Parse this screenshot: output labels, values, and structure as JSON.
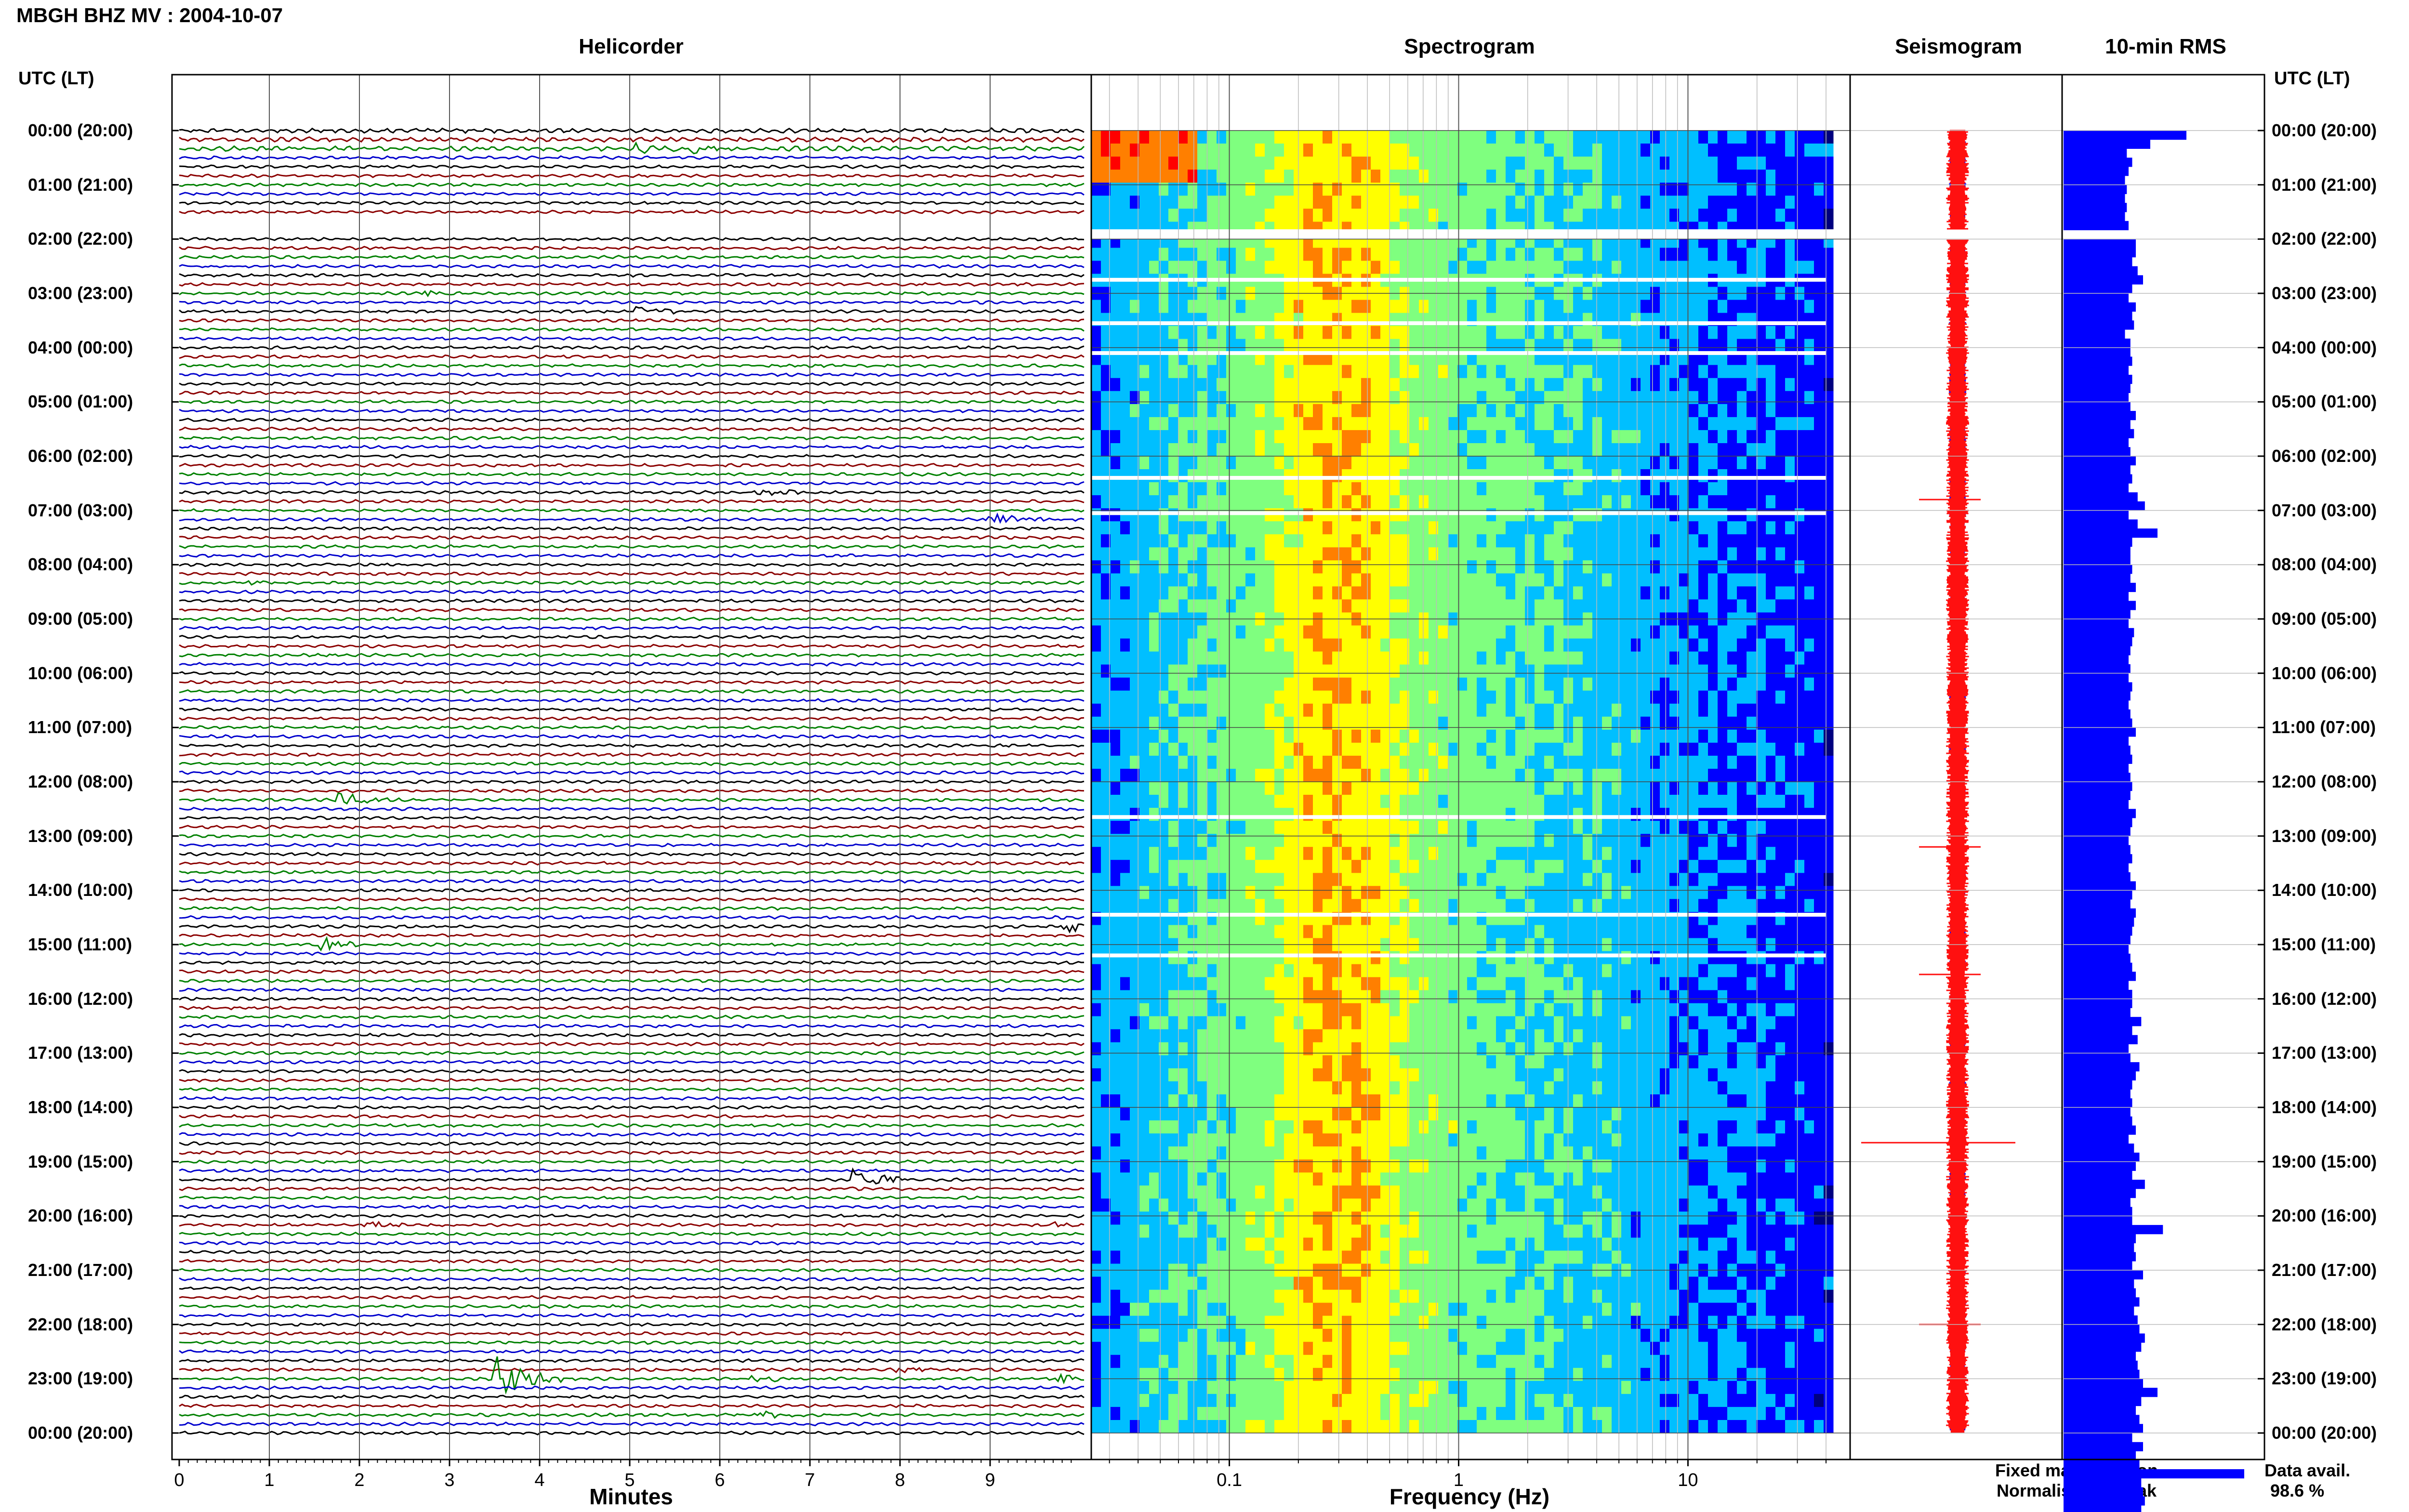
{
  "header": {
    "station_title": "MBGH BHZ MV : 2004-10-07",
    "time_axis_label_left": "UTC (LT)",
    "time_axis_label_right": "UTC (LT)"
  },
  "panels": {
    "helicorder": {
      "title": "Helicorder",
      "xlabel": "Minutes"
    },
    "spectrogram": {
      "title": "Spectrogram",
      "xlabel": "Frequency (Hz)"
    },
    "seismogram": {
      "title": "Seismogram"
    },
    "rms": {
      "title": "10-min RMS"
    }
  },
  "legend": {
    "fixed": "Fixed magnification",
    "normalised": "Normalised to peak",
    "fixed_color": "#1010ff",
    "normalised_color": "#ff1010"
  },
  "availability": {
    "label": "Data avail.",
    "value": "98.6 %"
  },
  "chart_data": [
    {
      "type": "line",
      "panel": "Helicorder",
      "title": "Helicorder",
      "xlabel": "Minutes",
      "ylabel": "UTC (LT)",
      "x_ticks": [
        "0",
        "1",
        "2",
        "3",
        "4",
        "5",
        "6",
        "7",
        "8",
        "9"
      ],
      "xlim": [
        0,
        10
      ],
      "time_labels": [
        "00:00 (20:00)",
        "01:00 (21:00)",
        "02:00 (22:00)",
        "03:00 (23:00)",
        "04:00 (00:00)",
        "05:00 (01:00)",
        "06:00 (02:00)",
        "07:00 (03:00)",
        "08:00 (04:00)",
        "09:00 (05:00)",
        "10:00 (06:00)",
        "11:00 (07:00)",
        "12:00 (08:00)",
        "13:00 (09:00)",
        "14:00 (10:00)",
        "15:00 (11:00)",
        "16:00 (12:00)",
        "17:00 (13:00)",
        "18:00 (14:00)",
        "19:00 (15:00)",
        "20:00 (16:00)",
        "21:00 (17:00)",
        "22:00 (18:00)",
        "23:00 (19:00)",
        "00:00 (20:00)"
      ],
      "trace_colors": [
        "#000000",
        "#8b0000",
        "#008000",
        "#0000cd"
      ],
      "missing_rows": [
        10,
        11
      ],
      "events": [
        {
          "row": 2,
          "minute": 5.1,
          "amp": 2.0
        },
        {
          "row": 2,
          "minute": 5.7,
          "amp": 1.6
        },
        {
          "row": 18,
          "minute": 2.7,
          "amp": 1.6
        },
        {
          "row": 20,
          "minute": 5.1,
          "amp": 2.0
        },
        {
          "row": 40,
          "minute": 6.4,
          "amp": 1.5
        },
        {
          "row": 43,
          "minute": 9.0,
          "amp": 3.0
        },
        {
          "row": 50,
          "minute": 0.7,
          "amp": 1.6
        },
        {
          "row": 74,
          "minute": 1.8,
          "amp": 3.0
        },
        {
          "row": 88,
          "minute": 9.8,
          "amp": 2.6
        },
        {
          "row": 90,
          "minute": 1.6,
          "amp": 2.4
        },
        {
          "row": 116,
          "minute": 7.5,
          "amp": 4.0
        },
        {
          "row": 121,
          "minute": 9.6,
          "amp": 1.4
        },
        {
          "row": 121,
          "minute": 2.1,
          "amp": 1.5
        },
        {
          "row": 138,
          "minute": 3.55,
          "amp": 8.0
        },
        {
          "row": 138,
          "minute": 6.4,
          "amp": 1.5
        },
        {
          "row": 138,
          "minute": 9.8,
          "amp": 1.6
        },
        {
          "row": 137,
          "minute": 8.0,
          "amp": 1.3
        },
        {
          "row": 142,
          "minute": 6.5,
          "amp": 1.4
        }
      ]
    },
    {
      "type": "heatmap",
      "panel": "Spectrogram",
      "title": "Spectrogram",
      "xlabel": "Frequency (Hz)",
      "x_scale": "log",
      "x_ticks": [
        "0.1",
        "1",
        "10"
      ],
      "x_tick_values": [
        0.1,
        1,
        10
      ],
      "xlim": [
        0.025,
        40
      ],
      "gap_rows_hours": [
        [
          1.95,
          2.0
        ]
      ],
      "white_line_hours": [
        2.75,
        3.55,
        4.1,
        6.4,
        7.05,
        12.65,
        14.45,
        15.2
      ],
      "peak_band_hz": [
        0.15,
        0.6
      ],
      "colormap": [
        "#00007f",
        "#0000ff",
        "#00bfff",
        "#7fff7f",
        "#ffff00",
        "#ff7f00",
        "#ff0000"
      ]
    },
    {
      "type": "line",
      "panel": "Seismogram",
      "title": "Seismogram",
      "series": [
        {
          "name": "Fixed magnification",
          "color": "#1010ff"
        },
        {
          "name": "Normalised to peak",
          "color": "#ff1010"
        }
      ],
      "spike_hours": [
        6.8,
        13.2,
        15.55,
        18.65,
        22.0
      ]
    },
    {
      "type": "bar",
      "panel": "10-min RMS",
      "title": "10-min RMS",
      "orientation": "horizontal",
      "xlim": [
        0,
        100
      ],
      "missing_bins": [
        11
      ],
      "values": [
        68,
        48,
        35,
        38,
        36,
        34,
        35,
        34,
        35,
        34,
        36,
        0,
        40,
        40,
        38,
        41,
        44,
        38,
        36,
        40,
        38,
        39,
        34,
        37,
        37,
        38,
        36,
        38,
        37,
        36,
        37,
        40,
        37,
        39,
        36,
        37,
        40,
        37,
        38,
        36,
        41,
        45,
        36,
        41,
        52,
        38,
        37,
        37,
        38,
        37,
        40,
        36,
        40,
        37,
        36,
        39,
        38,
        37,
        36,
        37,
        36,
        38,
        37,
        36,
        37,
        38,
        40,
        36,
        37,
        38,
        36,
        37,
        38,
        37,
        36,
        40,
        38,
        37,
        36,
        37,
        38,
        36,
        37,
        40,
        38,
        37,
        40,
        39,
        38,
        37,
        36,
        37,
        38,
        40,
        36,
        38,
        38,
        37,
        43,
        38,
        41,
        36,
        37,
        42,
        40,
        38,
        37,
        38,
        37,
        38,
        40,
        36,
        39,
        42,
        40,
        38,
        45,
        40,
        37,
        38,
        38,
        55,
        40,
        39,
        40,
        38,
        44,
        39,
        40,
        42,
        39,
        41,
        42,
        45,
        43,
        40,
        41,
        42,
        44,
        52,
        43,
        40,
        42,
        44,
        38,
        44,
        40,
        42,
        100,
        43,
        44,
        45,
        43,
        42,
        41,
        40
      ]
    }
  ]
}
